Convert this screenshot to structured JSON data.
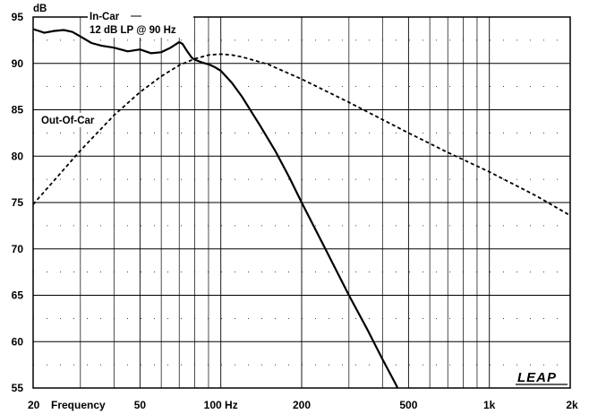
{
  "chart_data": {
    "type": "line",
    "ylabel": "dB",
    "xlabel": "Frequency",
    "x_scale": "log",
    "xlim": [
      20,
      2000
    ],
    "ylim": [
      55,
      95
    ],
    "x_ticks": [
      {
        "value": 20,
        "label": "20"
      },
      {
        "value": 50,
        "label": "50"
      },
      {
        "value": 100,
        "label": "100 Hz"
      },
      {
        "value": 200,
        "label": "200"
      },
      {
        "value": 500,
        "label": "500"
      },
      {
        "value": 1000,
        "label": "1k"
      },
      {
        "value": 2000,
        "label": "2k"
      }
    ],
    "y_ticks": [
      55,
      60,
      65,
      70,
      75,
      80,
      85,
      90,
      95
    ],
    "grid": true,
    "brand": "LEAP",
    "series": [
      {
        "name": "In-Car",
        "subtitle": "12 dB LP @ 90 Hz",
        "style": "solid",
        "color": "#000000",
        "x": [
          20,
          21,
          22,
          24,
          26,
          28,
          30,
          33,
          36,
          40,
          45,
          50,
          55,
          60,
          65,
          70,
          72,
          75,
          78,
          80,
          85,
          90,
          95,
          100,
          110,
          120,
          140,
          160,
          180,
          200,
          250,
          300,
          350,
          400,
          450,
          480
        ],
        "y": [
          93.7,
          93.5,
          93.3,
          93.5,
          93.6,
          93.4,
          92.9,
          92.2,
          91.9,
          91.7,
          91.3,
          91.5,
          91.1,
          91.2,
          91.7,
          92.3,
          92.1,
          91.3,
          90.6,
          90.4,
          90.1,
          89.9,
          89.6,
          89.2,
          87.9,
          86.4,
          83.3,
          80.5,
          77.7,
          75.0,
          69.5,
          65.0,
          61.4,
          58.1,
          55.3,
          53.5
        ]
      },
      {
        "name": "Out-Of-Car",
        "style": "dashed",
        "color": "#000000",
        "x": [
          20,
          25,
          30,
          40,
          50,
          60,
          70,
          80,
          90,
          100,
          110,
          120,
          150,
          200,
          300,
          500,
          700,
          1000,
          1500,
          2000
        ],
        "y": [
          74.8,
          78.0,
          80.6,
          84.4,
          86.9,
          88.6,
          89.8,
          90.5,
          90.9,
          91.0,
          90.9,
          90.7,
          89.9,
          88.3,
          85.8,
          82.5,
          80.4,
          78.3,
          75.7,
          73.6
        ]
      }
    ]
  }
}
